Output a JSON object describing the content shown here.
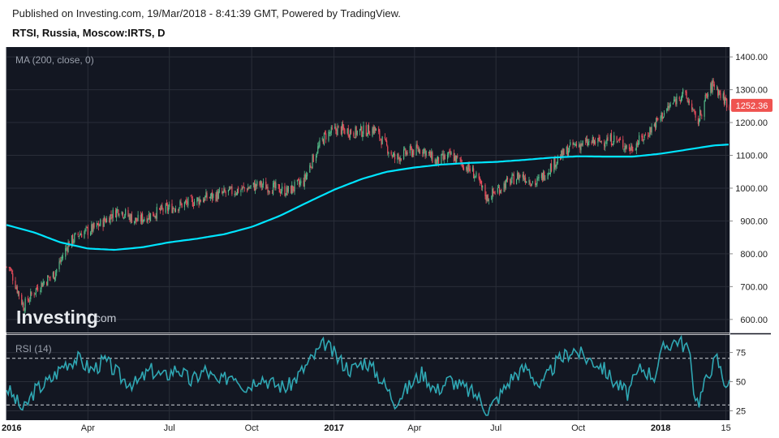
{
  "header": {
    "published": "Published on Investing.com, 19/Mar/2018 - 8:41:39 GMT, Powered by TradingView.",
    "symbol": "RTSI, Russia, Moscow:IRTS, D"
  },
  "watermark": {
    "main": "Investing",
    "suffix": ".com"
  },
  "colors": {
    "pane_bg": "#131722",
    "up": "#53b987",
    "down": "#eb4d5c",
    "ma": "#00e5ff",
    "rsi": "#2fa7b3",
    "price_badge": "#ef5350",
    "band": "#d0d3d8"
  },
  "chart_data": [
    {
      "type": "candlestick",
      "title": "RTSI, Russia, Moscow:IRTS, D",
      "indicator_label": "MA (200, close, 0)",
      "last_price": "1252.36",
      "ylim": [
        560,
        1430
      ],
      "y_ticks": [
        "600.00",
        "700.00",
        "800.00",
        "900.00",
        "1000.00",
        "1100.00",
        "1200.00",
        "1300.00",
        "1400.00"
      ],
      "x_ticks": [
        "2016",
        "Apr",
        "Jul",
        "Oct",
        "2017",
        "Apr",
        "Jul",
        "Oct",
        "2018",
        "15"
      ],
      "x_tick_dates": [
        "2016-01-01",
        "2016-04-01",
        "2016-07-01",
        "2016-10-01",
        "2017-01-01",
        "2017-04-01",
        "2017-07-01",
        "2017-10-01",
        "2018-01-01",
        "2018-03-15"
      ],
      "date_range": [
        "2016-01-01",
        "2018-03-19"
      ],
      "close_path": [
        [
          "2016-01-04",
          760
        ],
        [
          "2016-01-20",
          640
        ],
        [
          "2016-02-05",
          700
        ],
        [
          "2016-02-24",
          740
        ],
        [
          "2016-03-10",
          830
        ],
        [
          "2016-03-22",
          860
        ],
        [
          "2016-04-10",
          880
        ],
        [
          "2016-05-05",
          935
        ],
        [
          "2016-05-25",
          900
        ],
        [
          "2016-06-20",
          930
        ],
        [
          "2016-07-15",
          950
        ],
        [
          "2016-08-10",
          970
        ],
        [
          "2016-09-10",
          990
        ],
        [
          "2016-10-10",
          1010
        ],
        [
          "2016-11-10",
          990
        ],
        [
          "2016-11-28",
          1020
        ],
        [
          "2016-12-10",
          1100
        ],
        [
          "2016-12-22",
          1160
        ],
        [
          "2017-01-05",
          1180
        ],
        [
          "2017-01-25",
          1170
        ],
        [
          "2017-02-15",
          1180
        ],
        [
          "2017-03-10",
          1090
        ],
        [
          "2017-03-25",
          1110
        ],
        [
          "2017-04-10",
          1120
        ],
        [
          "2017-04-25",
          1080
        ],
        [
          "2017-05-12",
          1100
        ],
        [
          "2017-06-05",
          1050
        ],
        [
          "2017-06-21",
          970
        ],
        [
          "2017-07-10",
          1010
        ],
        [
          "2017-07-28",
          1040
        ],
        [
          "2017-08-15",
          1015
        ],
        [
          "2017-09-05",
          1080
        ],
        [
          "2017-09-25",
          1130
        ],
        [
          "2017-10-20",
          1140
        ],
        [
          "2017-11-10",
          1150
        ],
        [
          "2017-11-28",
          1120
        ],
        [
          "2017-12-15",
          1160
        ],
        [
          "2018-01-05",
          1230
        ],
        [
          "2018-01-25",
          1290
        ],
        [
          "2018-02-05",
          1250
        ],
        [
          "2018-02-10",
          1190
        ],
        [
          "2018-02-20",
          1270
        ],
        [
          "2018-03-01",
          1320
        ],
        [
          "2018-03-10",
          1280
        ],
        [
          "2018-03-19",
          1252
        ]
      ],
      "series": [
        {
          "name": "MA (200, close, 0)",
          "type": "line",
          "points": [
            [
              "2016-01-01",
              888
            ],
            [
              "2016-02-01",
              865
            ],
            [
              "2016-03-01",
              835
            ],
            [
              "2016-04-01",
              816
            ],
            [
              "2016-05-01",
              812
            ],
            [
              "2016-06-01",
              820
            ],
            [
              "2016-07-01",
              835
            ],
            [
              "2016-08-01",
              846
            ],
            [
              "2016-09-01",
              860
            ],
            [
              "2016-10-01",
              882
            ],
            [
              "2016-11-01",
              915
            ],
            [
              "2016-12-01",
              955
            ],
            [
              "2017-01-01",
              995
            ],
            [
              "2017-02-01",
              1028
            ],
            [
              "2017-03-01",
              1050
            ],
            [
              "2017-04-01",
              1063
            ],
            [
              "2017-05-01",
              1072
            ],
            [
              "2017-06-01",
              1077
            ],
            [
              "2017-07-01",
              1080
            ],
            [
              "2017-08-01",
              1086
            ],
            [
              "2017-09-01",
              1093
            ],
            [
              "2017-10-01",
              1097
            ],
            [
              "2017-11-01",
              1096
            ],
            [
              "2017-12-01",
              1096
            ],
            [
              "2018-01-01",
              1105
            ],
            [
              "2018-02-01",
              1118
            ],
            [
              "2018-03-01",
              1130
            ],
            [
              "2018-03-19",
              1133
            ]
          ]
        }
      ]
    },
    {
      "type": "line",
      "title": "RSI (14)",
      "ylim": [
        17,
        90
      ],
      "y_ticks": [
        "25",
        "50",
        "75"
      ],
      "bands": [
        30,
        70
      ],
      "series": [
        {
          "name": "RSI (14)",
          "points": [
            [
              "2016-01-01",
              45
            ],
            [
              "2016-01-20",
              25
            ],
            [
              "2016-02-01",
              42
            ],
            [
              "2016-02-20",
              52
            ],
            [
              "2016-03-05",
              65
            ],
            [
              "2016-03-20",
              70
            ],
            [
              "2016-04-05",
              60
            ],
            [
              "2016-04-20",
              68
            ],
            [
              "2016-05-10",
              52
            ],
            [
              "2016-05-25",
              48
            ],
            [
              "2016-06-10",
              60
            ],
            [
              "2016-06-25",
              54
            ],
            [
              "2016-07-10",
              62
            ],
            [
              "2016-07-25",
              50
            ],
            [
              "2016-08-10",
              60
            ],
            [
              "2016-08-25",
              48
            ],
            [
              "2016-09-10",
              58
            ],
            [
              "2016-09-25",
              45
            ],
            [
              "2016-10-10",
              55
            ],
            [
              "2016-10-25",
              48
            ],
            [
              "2016-11-10",
              45
            ],
            [
              "2016-11-25",
              58
            ],
            [
              "2016-12-10",
              72
            ],
            [
              "2016-12-22",
              83
            ],
            [
              "2017-01-05",
              70
            ],
            [
              "2017-01-20",
              60
            ],
            [
              "2017-02-05",
              68
            ],
            [
              "2017-02-20",
              55
            ],
            [
              "2017-03-10",
              33
            ],
            [
              "2017-03-25",
              45
            ],
            [
              "2017-04-10",
              58
            ],
            [
              "2017-04-25",
              42
            ],
            [
              "2017-05-10",
              52
            ],
            [
              "2017-05-25",
              45
            ],
            [
              "2017-06-10",
              38
            ],
            [
              "2017-06-22",
              25
            ],
            [
              "2017-07-05",
              38
            ],
            [
              "2017-07-20",
              55
            ],
            [
              "2017-08-05",
              62
            ],
            [
              "2017-08-20",
              45
            ],
            [
              "2017-09-05",
              65
            ],
            [
              "2017-09-25",
              78
            ],
            [
              "2017-10-10",
              70
            ],
            [
              "2017-10-25",
              65
            ],
            [
              "2017-11-10",
              50
            ],
            [
              "2017-11-25",
              40
            ],
            [
              "2017-12-10",
              62
            ],
            [
              "2017-12-25",
              55
            ],
            [
              "2018-01-05",
              80
            ],
            [
              "2018-01-20",
              86
            ],
            [
              "2018-02-01",
              78
            ],
            [
              "2018-02-08",
              40
            ],
            [
              "2018-02-12",
              32
            ],
            [
              "2018-02-25",
              60
            ],
            [
              "2018-03-05",
              70
            ],
            [
              "2018-03-12",
              52
            ],
            [
              "2018-03-19",
              47
            ]
          ]
        }
      ]
    }
  ]
}
